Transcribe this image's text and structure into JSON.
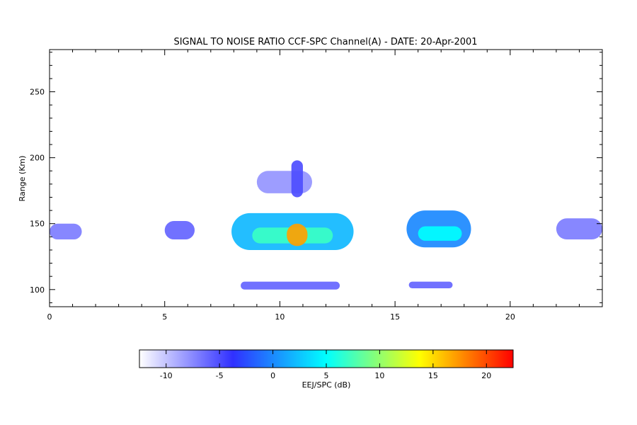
{
  "chart_data": {
    "type": "heatmap",
    "title": "SIGNAL TO NOISE RATIO CCF-SPC Channel(A) - DATE: 20-Apr-2001",
    "xlabel": "",
    "ylabel": "Range (Km)",
    "xlim": [
      0,
      24
    ],
    "ylim": [
      87,
      282
    ],
    "x_ticks": [
      0,
      5,
      10,
      15,
      20
    ],
    "y_ticks": [
      100,
      150,
      200,
      250
    ],
    "colorbar": {
      "label": "EEJ/SPC (dB)",
      "range": [
        -12.5,
        22.5
      ],
      "ticks": [
        -10,
        -5,
        0,
        5,
        10,
        15,
        20
      ],
      "colors": [
        "#ffffff",
        "#3030ff",
        "#00ffff",
        "#ffff00",
        "#ff0000"
      ]
    },
    "regions": [
      {
        "x": [
          0.0,
          1.4
        ],
        "y": [
          138,
          150
        ],
        "snr": -7
      },
      {
        "x": [
          5.0,
          6.3
        ],
        "y": [
          138,
          152
        ],
        "snr": -6
      },
      {
        "x": [
          7.9,
          13.2
        ],
        "y": [
          130,
          158
        ],
        "snr": 2
      },
      {
        "x": [
          8.8,
          12.3
        ],
        "y": [
          135,
          147
        ],
        "snr": 7
      },
      {
        "x": [
          10.3,
          11.2
        ],
        "y": [
          133,
          150
        ],
        "snr": 17
      },
      {
        "x": [
          9.0,
          11.4
        ],
        "y": [
          173,
          190
        ],
        "snr": -8
      },
      {
        "x": [
          10.5,
          11.0
        ],
        "y": [
          170,
          198
        ],
        "snr": -5
      },
      {
        "x": [
          8.3,
          12.6
        ],
        "y": [
          100,
          106
        ],
        "snr": -6
      },
      {
        "x": [
          15.5,
          18.3
        ],
        "y": [
          132,
          160
        ],
        "snr": 0
      },
      {
        "x": [
          16.0,
          17.9
        ],
        "y": [
          137,
          148
        ],
        "snr": 5
      },
      {
        "x": [
          15.6,
          17.5
        ],
        "y": [
          101,
          106
        ],
        "snr": -6
      },
      {
        "x": [
          22.0,
          24.0
        ],
        "y": [
          138,
          154
        ],
        "snr": -7
      }
    ]
  }
}
